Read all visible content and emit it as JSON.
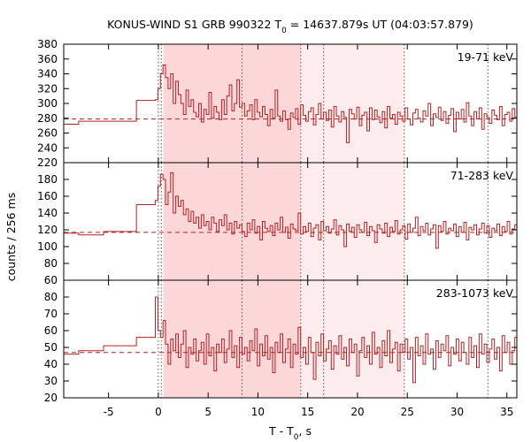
{
  "chart_data": {
    "type": "line",
    "title_parts": {
      "prefix": "KONUS-WIND S1 GRB 990322 T",
      "sub": "0",
      "suffix": " = 14637.879s UT (04:03:57.879)"
    },
    "xlabel_parts": {
      "prefix": "T - T",
      "sub": "0",
      "suffix": ", s"
    },
    "ylabel": "counts / 256 ms",
    "xlim": [
      -9.5,
      36
    ],
    "xticks": [
      -5,
      0,
      5,
      10,
      15,
      20,
      25,
      30,
      35
    ],
    "xtick_labels": [
      "-5",
      "0",
      "5",
      "10",
      "15",
      "20",
      "25",
      "30",
      "35"
    ],
    "shaded_intervals": [
      {
        "x": [
          0.5,
          14.3
        ],
        "color": "#fcd7da"
      },
      {
        "x": [
          14.3,
          24.7
        ],
        "color": "#fdeced"
      }
    ],
    "vertical_dotted_lines": [
      0.0,
      0.3,
      8.4,
      14.3,
      16.6,
      24.7,
      33.1
    ],
    "line_color": "#b22222",
    "panels": [
      {
        "band_label": "19-71 keV",
        "ylim": [
          220,
          380
        ],
        "yticks": [
          220,
          240,
          260,
          280,
          300,
          320,
          340,
          360,
          380
        ],
        "ytick_labels": [
          "220",
          "240",
          "260",
          "280",
          "300",
          "320",
          "340",
          "360",
          "380"
        ],
        "background_level": 279,
        "pre_trigger": [
          {
            "x": [
              -9.5,
              -8.0
            ],
            "y": 272
          },
          {
            "x": [
              -8.0,
              -2.2
            ],
            "y": 276
          },
          {
            "x": [
              -2.2,
              -0.3
            ],
            "y": 304
          }
        ],
        "series": [
          305,
          320,
          340,
          352,
          335,
          320,
          340,
          300,
          330,
          312,
          300,
          285,
          318,
          296,
          305,
          288,
          282,
          300,
          275,
          292,
          285,
          315,
          280,
          296,
          288,
          278,
          305,
          285,
          310,
          325,
          290,
          300,
          332,
          295,
          300,
          283,
          290,
          298,
          278,
          305,
          288,
          282,
          296,
          285,
          270,
          292,
          280,
          318,
          283,
          276,
          290,
          278,
          265,
          287,
          281,
          293,
          272,
          298,
          284,
          276,
          289,
          294,
          271,
          285,
          300,
          279,
          288,
          277,
          291,
          268,
          296,
          283,
          275,
          289,
          281,
          247,
          292,
          286,
          279,
          295,
          270,
          284,
          288,
          263,
          294,
          278,
          291,
          282,
          274,
          289,
          267,
          296,
          280,
          285,
          272,
          288,
          283,
          276,
          294,
          279,
          271,
          287,
          292,
          280,
          275,
          290,
          283,
          300,
          270,
          286,
          281,
          295,
          277,
          289,
          273,
          284,
          293,
          262,
          288,
          279,
          292,
          275,
          301,
          283,
          270,
          289,
          279,
          294,
          265,
          286,
          281,
          273,
          291,
          284,
          278,
          296,
          270,
          285,
          288,
          276,
          293,
          281,
          268,
          306,
          279,
          287,
          274,
          290,
          283,
          277,
          265,
          292,
          280,
          286,
          273
        ]
      },
      {
        "band_label": "71-283 keV",
        "ylim": [
          60,
          200
        ],
        "yticks": [
          60,
          80,
          100,
          120,
          140,
          160,
          180
        ],
        "ytick_labels": [
          "60",
          "80",
          "100",
          "120",
          "140",
          "160",
          "180"
        ],
        "background_level": 117,
        "pre_trigger": [
          {
            "x": [
              -9.5,
              -8.0
            ],
            "y": 116
          },
          {
            "x": [
              -8.0,
              -5.5
            ],
            "y": 114
          },
          {
            "x": [
              -5.5,
              -2.2
            ],
            "y": 118
          },
          {
            "x": [
              -2.2,
              -0.3
            ],
            "y": 150
          }
        ],
        "series": [
          155,
          172,
          186,
          180,
          150,
          165,
          188,
          140,
          160,
          148,
          155,
          138,
          145,
          130,
          142,
          128,
          135,
          122,
          138,
          125,
          130,
          120,
          135,
          128,
          118,
          132,
          125,
          138,
          120,
          128,
          115,
          130,
          122,
          126,
          118,
          112,
          128,
          120,
          132,
          116,
          124,
          108,
          130,
          122,
          118,
          125,
          113,
          128,
          120,
          135,
          117,
          123,
          110,
          127,
          121,
          119,
          140,
          115,
          124,
          118,
          128,
          112,
          122,
          126,
          108,
          130,
          119,
          124,
          116,
          121,
          132,
          114,
          125,
          120,
          100,
          127,
          118,
          123,
          111,
          126,
          120,
          117,
          129,
          113,
          124,
          119,
          105,
          126,
          121,
          116,
          128,
          112,
          123,
          118,
          131,
          115,
          120,
          125,
          109,
          127,
          117,
          122,
          135,
          113,
          124,
          119,
          128,
          114,
          121,
          126,
          98,
          125,
          118,
          130,
          115,
          122,
          119,
          127,
          112,
          124,
          117,
          129,
          108,
          123,
          120,
          126,
          114,
          121,
          128,
          116,
          125,
          111,
          122,
          119,
          127,
          113,
          124,
          118,
          130,
          115,
          121,
          126,
          109,
          123,
          117,
          128,
          114,
          122,
          120,
          125,
          112,
          127,
          118,
          121,
          116
        ]
      },
      {
        "band_label": "283-1073 keV",
        "ylim": [
          20,
          90
        ],
        "yticks": [
          20,
          30,
          40,
          50,
          60,
          70,
          80
        ],
        "ytick_labels": [
          "20",
          "30",
          "40",
          "50",
          "60",
          "70",
          "80"
        ],
        "background_level": 47,
        "pre_trigger": [
          {
            "x": [
              -9.5,
              -8.0
            ],
            "y": 46
          },
          {
            "x": [
              -8.0,
              -5.5
            ],
            "y": 48
          },
          {
            "x": [
              -5.5,
              -2.2
            ],
            "y": 51
          },
          {
            "x": [
              -2.2,
              -0.3
            ],
            "y": 56
          }
        ],
        "series": [
          80,
          60,
          56,
          66,
          52,
          40,
          55,
          48,
          58,
          44,
          52,
          60,
          38,
          50,
          46,
          55,
          42,
          48,
          53,
          40,
          58,
          45,
          50,
          36,
          52,
          47,
          55,
          41,
          49,
          60,
          44,
          51,
          38,
          56,
          46,
          50,
          42,
          54,
          48,
          61,
          39,
          52,
          45,
          57,
          43,
          50,
          35,
          53,
          47,
          58,
          41,
          49,
          55,
          38,
          52,
          46,
          62,
          44,
          50,
          40,
          56,
          47,
          31,
          53,
          45,
          58,
          42,
          49,
          54,
          37,
          51,
          46,
          57,
          43,
          50,
          39,
          55,
          47,
          52,
          33,
          48,
          56,
          44,
          51,
          40,
          59,
          46,
          50,
          38,
          54,
          45,
          60,
          41,
          49,
          53,
          36,
          52,
          47,
          55,
          43,
          50,
          29,
          56,
          45,
          51,
          40,
          58,
          46,
          49,
          37,
          54,
          44,
          52,
          48,
          57,
          39,
          50,
          46,
          55,
          42,
          53,
          47,
          40,
          56,
          44,
          51,
          38,
          58,
          46,
          52,
          41,
          49,
          55,
          43,
          50,
          36,
          57,
          47,
          53,
          40,
          48,
          56,
          44,
          51,
          39,
          54,
          46,
          60,
          28,
          52,
          45,
          58,
          41,
          49,
          30
        ]
      }
    ]
  }
}
